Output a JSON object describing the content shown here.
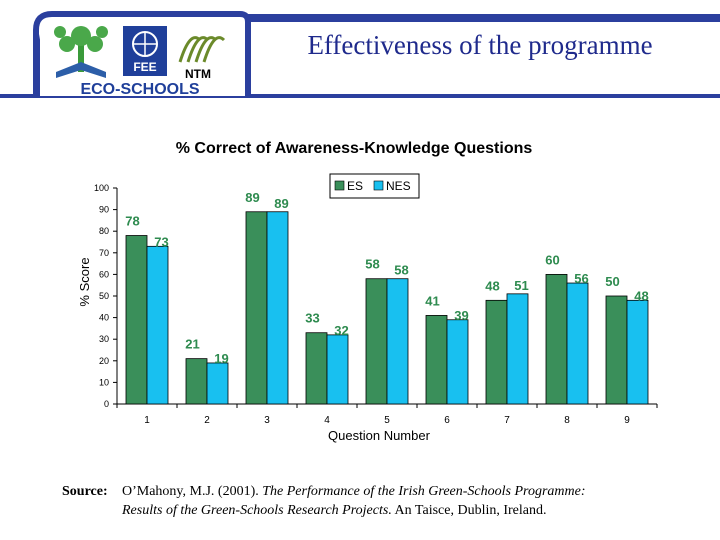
{
  "slide": {
    "title": "Effectiveness of the programme"
  },
  "logos": {
    "fee_text": "FEE",
    "ntm_text": "NTM",
    "eco_schools_text": "ECO-SCHOOLS"
  },
  "colors": {
    "es": "#3a8f5a",
    "nes": "#18c0f0",
    "es_label": "#2e8b4f",
    "nes_label": "#2e8b4f",
    "title": "#1f2a8c"
  },
  "chart_data": {
    "type": "bar",
    "title": "% Correct of Awareness-Knowledge Questions",
    "xlabel": "Question Number",
    "ylabel": "% Score",
    "ylim": [
      0,
      100
    ],
    "yticks": [
      0,
      10,
      20,
      30,
      40,
      50,
      60,
      70,
      80,
      90,
      100
    ],
    "categories": [
      "1",
      "2",
      "3",
      "4",
      "5",
      "6",
      "7",
      "8",
      "9"
    ],
    "series": [
      {
        "name": "ES",
        "values": [
          78,
          21,
          89,
          33,
          58,
          41,
          48,
          60,
          50
        ]
      },
      {
        "name": "NES",
        "values": [
          73,
          19,
          89,
          32,
          58,
          39,
          51,
          56,
          48
        ]
      }
    ],
    "legend": "top-center",
    "grid": false
  },
  "source": {
    "label": "Source:",
    "line1_prefix": "O’Mahony, M.J. (2001). ",
    "line1_italic": "The Performance of the Irish Green-Schools Programme:",
    "line2_italic": "Results of the Green-Schools Research Projects.",
    "line2_suffix": " An Taisce, Dublin, Ireland."
  }
}
